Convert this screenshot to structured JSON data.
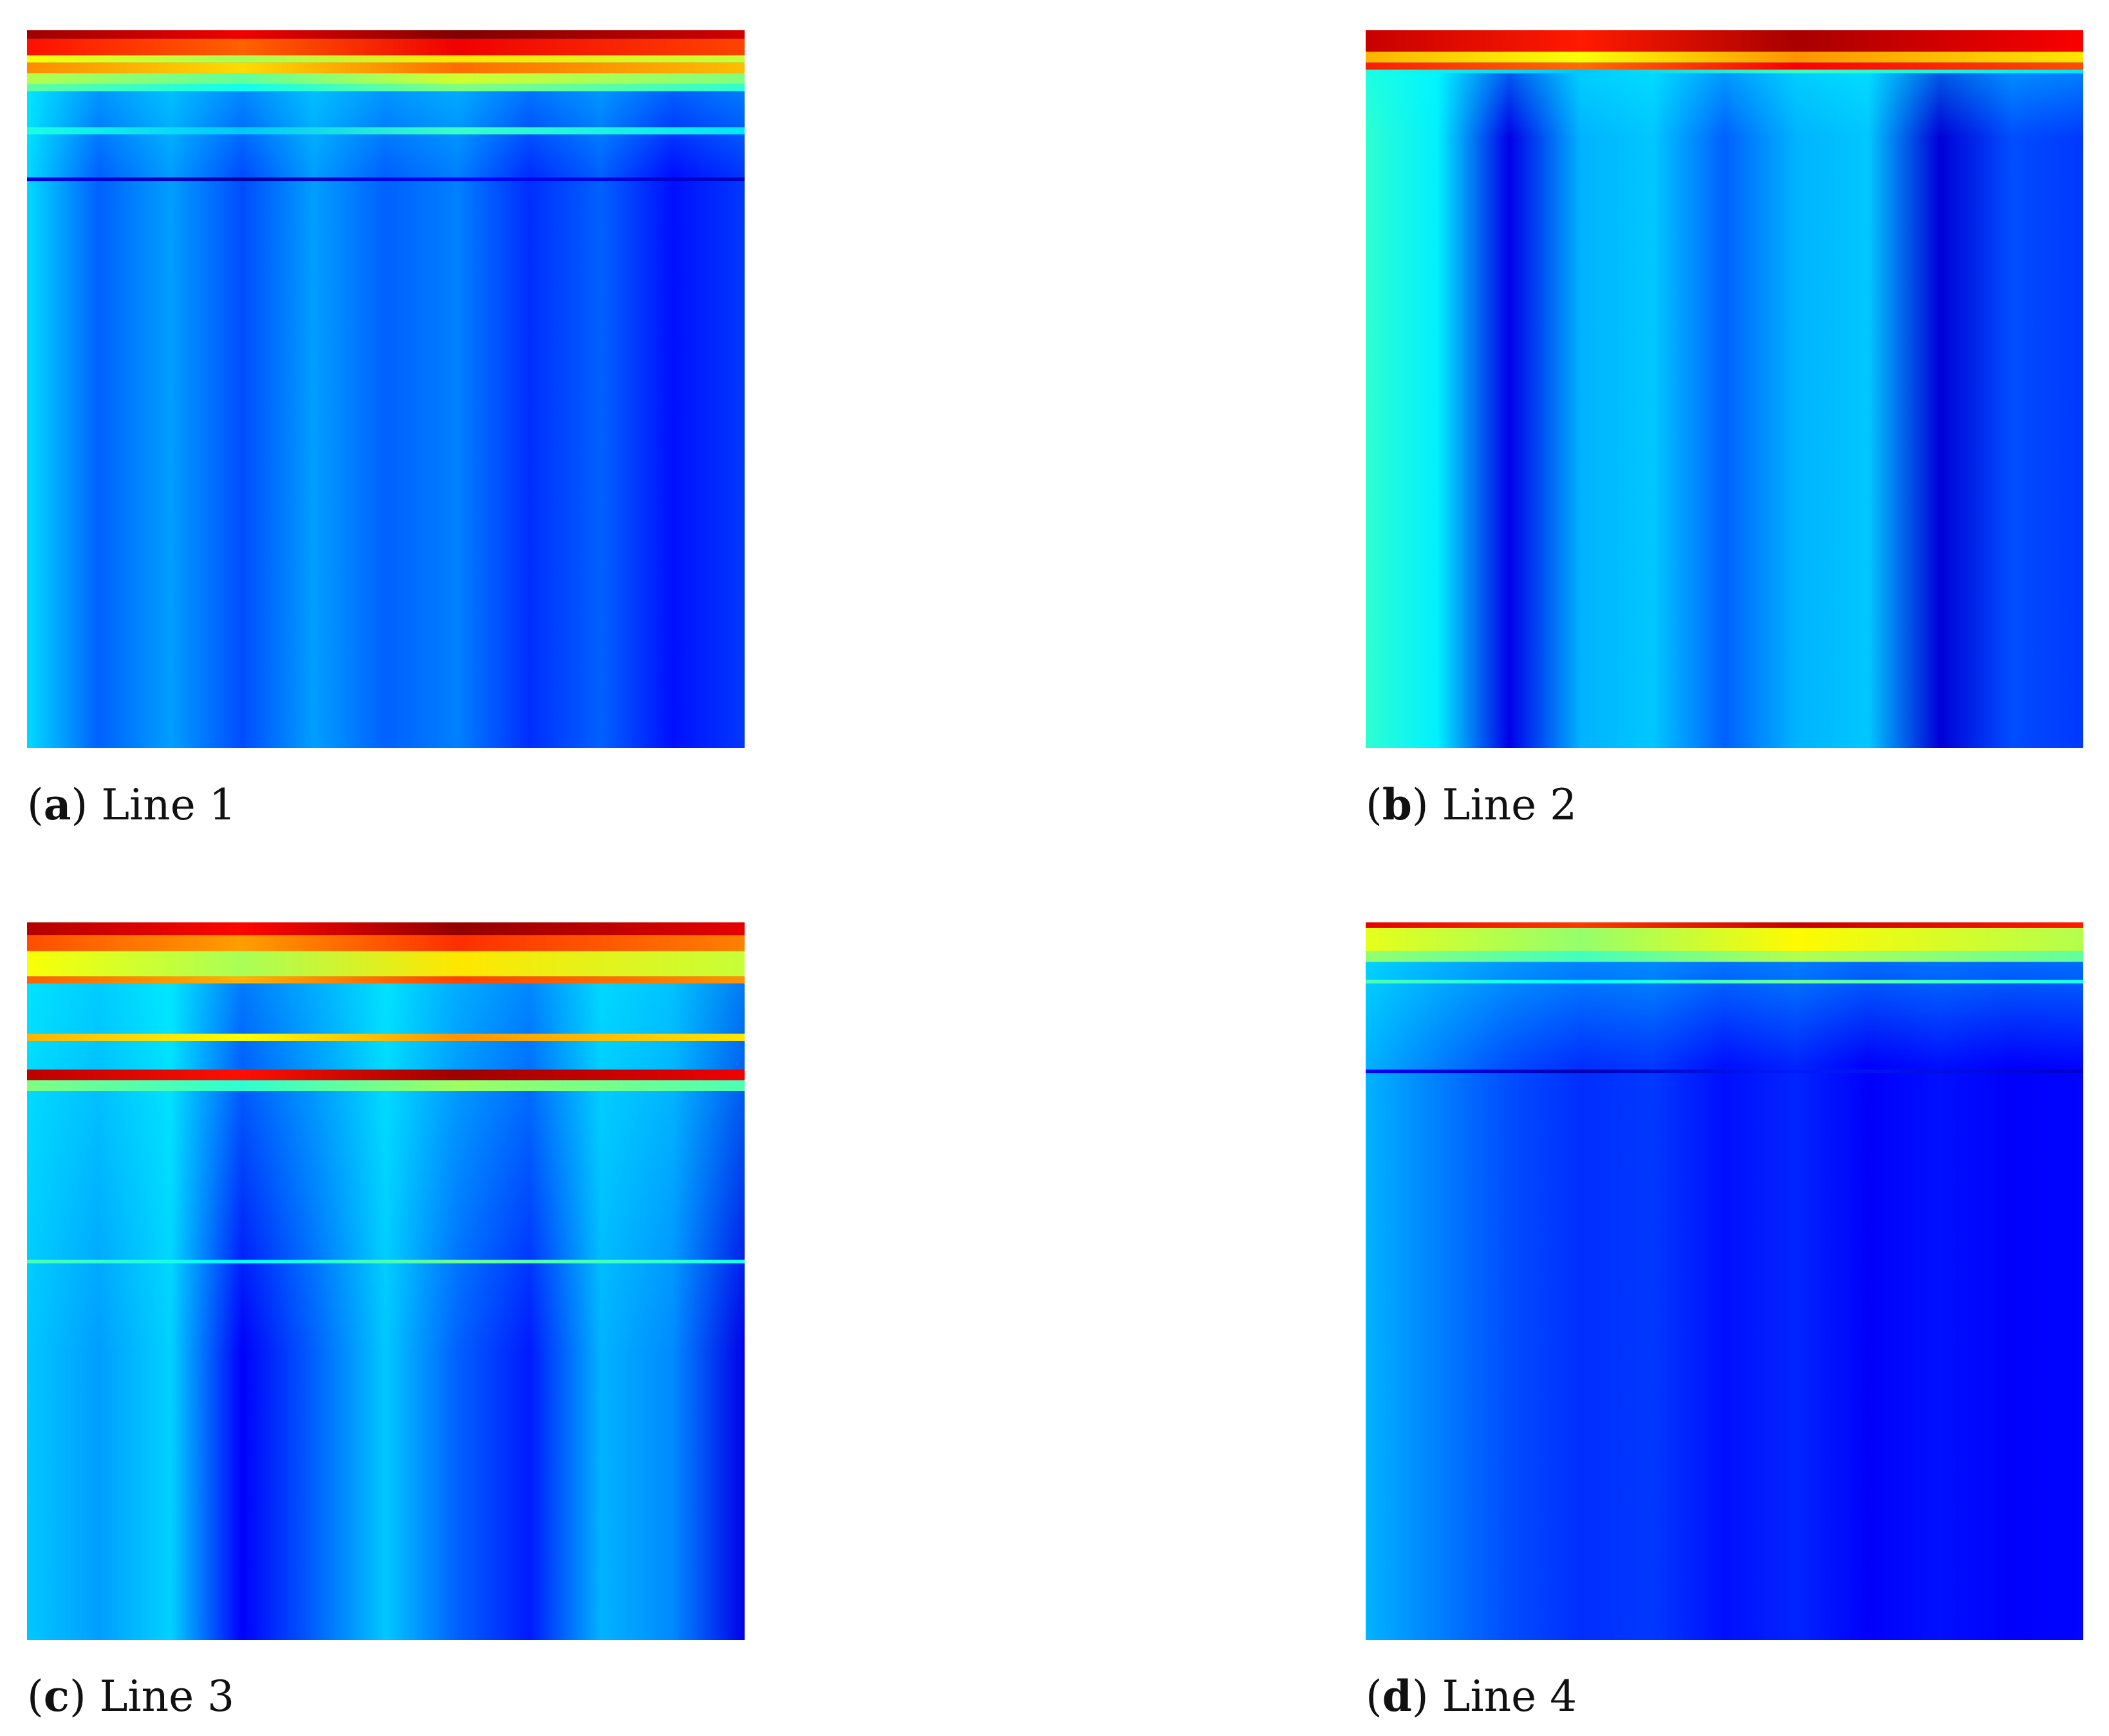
{
  "figure": {
    "panels": [
      {
        "letter": "a",
        "caption": "Line 1"
      },
      {
        "letter": "b",
        "caption": "Line 2"
      },
      {
        "letter": "c",
        "caption": "Line 3"
      },
      {
        "letter": "d",
        "caption": "Line 4"
      }
    ]
  },
  "colormap": {
    "name": "jet",
    "stops": [
      "#00008f",
      "#0000ff",
      "#0080ff",
      "#00ffff",
      "#80ff80",
      "#ffff00",
      "#ff8000",
      "#ff0000",
      "#800000"
    ]
  },
  "chart_data": [
    {
      "type": "heatmap",
      "title": "",
      "xlabel": "",
      "ylabel": "",
      "colormap": "jet",
      "grid": false,
      "bands": [
        {
          "y0": 0.0,
          "y1": 0.012,
          "value": 0.97
        },
        {
          "y0": 0.012,
          "y1": 0.035,
          "value": 0.86
        },
        {
          "y0": 0.035,
          "y1": 0.045,
          "value": 0.62
        },
        {
          "y0": 0.045,
          "y1": 0.06,
          "value": 0.74
        },
        {
          "y0": 0.06,
          "y1": 0.075,
          "value": 0.55
        },
        {
          "y0": 0.075,
          "y1": 0.085,
          "value": 0.47
        },
        {
          "y0": 0.135,
          "y1": 0.145,
          "value": 0.4
        },
        {
          "y0": 0.205,
          "y1": 0.21,
          "value": 0.1
        }
      ],
      "columns": [
        0.34,
        0.22,
        0.28,
        0.2,
        0.28,
        0.22,
        0.25,
        0.17,
        0.22,
        0.14,
        0.18
      ],
      "header_depth": 0.08
    },
    {
      "type": "heatmap",
      "title": "",
      "xlabel": "",
      "ylabel": "",
      "colormap": "jet",
      "grid": false,
      "bands": [
        {
          "y0": 0.0,
          "y1": 0.03,
          "value": 0.93
        },
        {
          "y0": 0.03,
          "y1": 0.045,
          "value": 0.7
        },
        {
          "y0": 0.045,
          "y1": 0.055,
          "value": 0.85
        },
        {
          "y0": 0.055,
          "y1": 0.06,
          "value": 0.4
        }
      ],
      "columns": [
        0.42,
        0.36,
        0.1,
        0.3,
        0.32,
        0.22,
        0.3,
        0.32,
        0.08,
        0.2,
        0.18
      ],
      "header_depth": 0.06
    },
    {
      "type": "heatmap",
      "title": "",
      "xlabel": "",
      "ylabel": "",
      "colormap": "jet",
      "grid": false,
      "bands": [
        {
          "y0": 0.0,
          "y1": 0.018,
          "value": 0.95
        },
        {
          "y0": 0.018,
          "y1": 0.04,
          "value": 0.8
        },
        {
          "y0": 0.04,
          "y1": 0.075,
          "value": 0.62
        },
        {
          "y0": 0.075,
          "y1": 0.085,
          "value": 0.78
        },
        {
          "y0": 0.155,
          "y1": 0.165,
          "value": 0.7
        },
        {
          "y0": 0.205,
          "y1": 0.22,
          "value": 0.94
        },
        {
          "y0": 0.22,
          "y1": 0.235,
          "value": 0.5
        },
        {
          "y0": 0.47,
          "y1": 0.475,
          "value": 0.45
        }
      ],
      "columns": [
        0.32,
        0.28,
        0.33,
        0.12,
        0.22,
        0.32,
        0.22,
        0.15,
        0.3,
        0.26,
        0.1
      ],
      "header_depth": 0.24
    },
    {
      "type": "heatmap",
      "title": "",
      "xlabel": "",
      "ylabel": "",
      "colormap": "jet",
      "grid": false,
      "bands": [
        {
          "y0": 0.0,
          "y1": 0.008,
          "value": 0.9
        },
        {
          "y0": 0.008,
          "y1": 0.04,
          "value": 0.6
        },
        {
          "y0": 0.04,
          "y1": 0.055,
          "value": 0.52
        },
        {
          "y0": 0.08,
          "y1": 0.085,
          "value": 0.45
        },
        {
          "y0": 0.205,
          "y1": 0.21,
          "value": 0.12
        }
      ],
      "columns": [
        0.3,
        0.25,
        0.2,
        0.17,
        0.18,
        0.14,
        0.16,
        0.12,
        0.14,
        0.12,
        0.13
      ],
      "header_depth": 0.08
    }
  ]
}
